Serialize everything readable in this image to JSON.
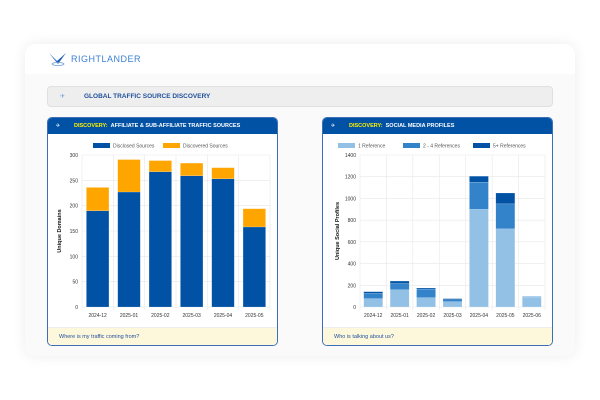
{
  "brand": {
    "name": "RIGHTLANDER"
  },
  "banner": {
    "title": "GLOBAL TRAFFIC SOURCE DISCOVERY"
  },
  "colors": {
    "header": "#0152a5",
    "accent_yellow": "#fff200",
    "footer_bg": "#fdf7dc"
  },
  "panels": [
    {
      "prefix": "DISCOVERY:",
      "title": "AFFILIATE & SUB-AFFILIATE TRAFFIC SOURCES",
      "footer": "Where is my traffic coming from?"
    },
    {
      "prefix": "DISCOVERY:",
      "title": "SOCIAL MEDIA PROFILES",
      "footer": "Who is talking about us?"
    }
  ],
  "chart_data": [
    {
      "type": "bar",
      "stacked": true,
      "ylabel": "Unique Domains",
      "ylim": [
        0,
        300
      ],
      "yticks": [
        0,
        50,
        100,
        150,
        200,
        250,
        300
      ],
      "grid": true,
      "legend": "top",
      "categories": [
        "2024-12",
        "2025-01",
        "2025-02",
        "2025-03",
        "2025-04",
        "2025-05"
      ],
      "series": [
        {
          "name": "Disclosed Sources",
          "color": "#0152a5",
          "values": [
            190,
            227,
            267,
            259,
            253,
            158
          ]
        },
        {
          "name": "Discovered Sources",
          "color": "#ffa500",
          "values": [
            46,
            64,
            22,
            25,
            22,
            36
          ]
        }
      ]
    },
    {
      "type": "bar",
      "stacked": true,
      "ylabel": "Unique Social Profiles",
      "ylim": [
        0,
        1400
      ],
      "yticks": [
        0,
        200,
        400,
        600,
        800,
        1000,
        1200,
        1400
      ],
      "grid": true,
      "legend": "top",
      "categories": [
        "2024-12",
        "2025-01",
        "2025-02",
        "2025-03",
        "2025-04",
        "2025-05",
        "2025-06"
      ],
      "series": [
        {
          "name": "1 Reference",
          "color": "#93c1e6",
          "values": [
            77,
            159,
            86,
            49,
            900,
            720,
            92
          ]
        },
        {
          "name": "2 - 4 References",
          "color": "#3283c9",
          "values": [
            49,
            58,
            79,
            18,
            250,
            230,
            5
          ]
        },
        {
          "name": "5+ References",
          "color": "#0152a5",
          "values": [
            15,
            22,
            10,
            10,
            55,
            100,
            0
          ]
        }
      ]
    }
  ]
}
